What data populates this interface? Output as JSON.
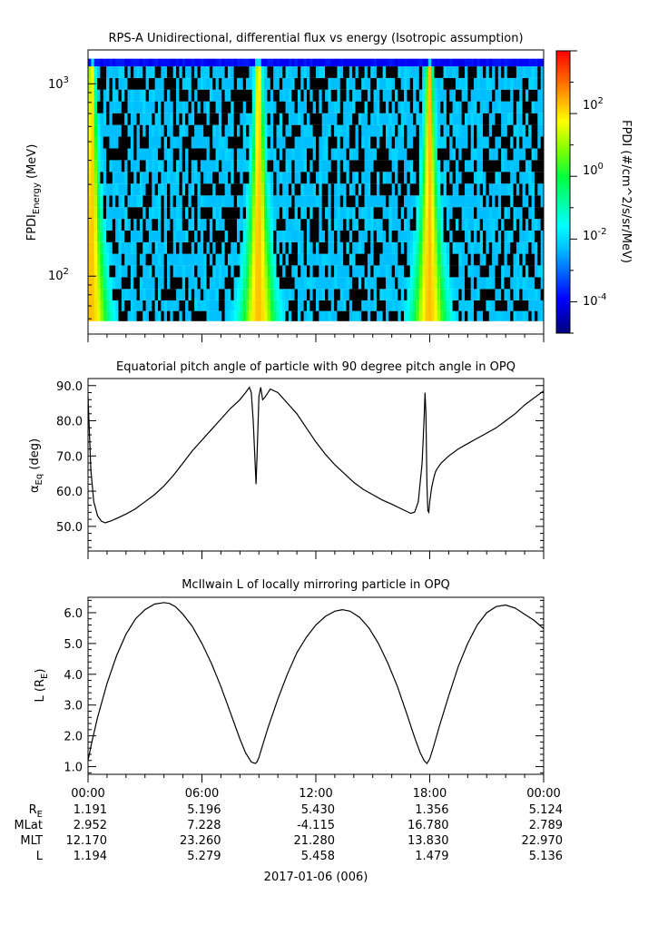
{
  "panels": {
    "spectrogram": {
      "title": "RPS-A Unidirectional, differential flux vs energy (Isotropic assumption)",
      "ylabel_main": "FPDI",
      "ylabel_sub": "Energy",
      "ylabel_unit": " (MeV)",
      "ytick_base": "10",
      "yticks": [
        {
          "exp": "3"
        },
        {
          "exp": "2"
        }
      ],
      "colorbar_label": "FPDI (#/cm^2/s/sr/MeV)",
      "colorbar_ticks": [
        {
          "exp": "2"
        },
        {
          "exp": "0"
        },
        {
          "exp": "-2"
        },
        {
          "exp": "-4"
        }
      ]
    },
    "pitch": {
      "title": "Equatorial pitch angle of particle with 90 degree pitch angle in OPQ",
      "ylabel_main": "α",
      "ylabel_sub": "Eq",
      "ylabel_unit": " (deg)"
    },
    "lshell": {
      "title": "McIlwain L of locally mirroring particle in OPQ",
      "ylabel_main": "L (R",
      "ylabel_sub": "E",
      "ylabel_unit": ")"
    }
  },
  "chart_data": [
    {
      "type": "heatmap",
      "title": "RPS-A Unidirectional, differential flux vs energy (Isotropic assumption)",
      "ylabel": "FPDI_Energy (MeV)",
      "yscale": "log",
      "ylim": [
        50,
        1500
      ],
      "xlim_hours": [
        0,
        24
      ],
      "colorbar_label": "FPDI (#/cm^2/s/sr/MeV)",
      "colorbar_scale": "log",
      "colorbar_range": [
        1e-05,
        10000.0
      ],
      "colormap": "rainbow (blue-cyan-green-yellow-red)",
      "energy_channels_mev": [
        62,
        70,
        80,
        92,
        106,
        122,
        140,
        161,
        185,
        213,
        245,
        282,
        325,
        374,
        430,
        495,
        570,
        655,
        755,
        870,
        1000,
        1150,
        1320
      ],
      "description_bands": [
        "flux peaks near perigee at ~00:00, ~08:55 and ~17:55 UT"
      ]
    },
    {
      "type": "line",
      "title": "Equatorial pitch angle of particle with 90 degree pitch angle in OPQ",
      "ylabel": "αEq (deg)",
      "ylim": [
        43,
        92
      ],
      "yticks": [
        50,
        60,
        70,
        80,
        90
      ],
      "x_hours": [
        0.0,
        0.05,
        0.15,
        0.3,
        0.5,
        0.7,
        0.9,
        1.2,
        1.6,
        2.0,
        2.5,
        3.0,
        3.5,
        4.0,
        4.5,
        5.0,
        5.5,
        6.0,
        6.5,
        7.0,
        7.5,
        8.0,
        8.3,
        8.5,
        8.6,
        8.7,
        8.8,
        8.85,
        8.9,
        9.0,
        9.1,
        9.2,
        9.3,
        9.6,
        10.0,
        10.5,
        11.0,
        11.5,
        12.0,
        12.5,
        13.0,
        13.5,
        14.0,
        14.5,
        15.0,
        15.5,
        16.0,
        16.5,
        17.0,
        17.2,
        17.4,
        17.6,
        17.7,
        17.75,
        17.8,
        17.85,
        17.9,
        17.95,
        18.0,
        18.1,
        18.2,
        18.3,
        18.4,
        18.6,
        19.0,
        19.5,
        20.0,
        20.5,
        21.0,
        21.5,
        22.0,
        22.5,
        23.0,
        23.5,
        24.0
      ],
      "y_deg": [
        87,
        80,
        66,
        57,
        53,
        51.5,
        51,
        51.5,
        52.5,
        53.5,
        55,
        57,
        59,
        61.5,
        64.5,
        68,
        71.5,
        74.5,
        77.5,
        80.5,
        83.5,
        86,
        88,
        89.5,
        88,
        80,
        68,
        62,
        70,
        87,
        89.5,
        86,
        86.5,
        89,
        88,
        85,
        82,
        78,
        74,
        70.5,
        67.5,
        65,
        62.5,
        60.5,
        59,
        57.5,
        56.3,
        55,
        53.7,
        54,
        57,
        68,
        80,
        88,
        82,
        62,
        54.5,
        54,
        57,
        61,
        63.5,
        65.5,
        66.5,
        68,
        70,
        72,
        73.5,
        75,
        76.5,
        78,
        80,
        82,
        84.5,
        86.5,
        88.5
      ]
    },
    {
      "type": "line",
      "title": "McIlwain L of locally mirroring particle in OPQ",
      "ylabel": "L (RE)",
      "ylim": [
        0.75,
        6.5
      ],
      "yticks": [
        1,
        2,
        3,
        4,
        5,
        6
      ],
      "x_hours": [
        0.0,
        0.2,
        0.5,
        1.0,
        1.5,
        2.0,
        2.5,
        3.0,
        3.5,
        4.0,
        4.3,
        4.6,
        5.0,
        5.5,
        6.0,
        6.5,
        7.0,
        7.5,
        8.0,
        8.3,
        8.6,
        8.8,
        8.9,
        9.0,
        9.2,
        9.5,
        10.0,
        10.5,
        11.0,
        11.5,
        12.0,
        12.5,
        13.0,
        13.4,
        13.8,
        14.3,
        14.8,
        15.3,
        15.8,
        16.3,
        16.8,
        17.2,
        17.5,
        17.7,
        17.85,
        18.0,
        18.2,
        18.5,
        19.0,
        19.5,
        20.0,
        20.5,
        21.0,
        21.5,
        22.0,
        22.5,
        23.0,
        23.5,
        24.0
      ],
      "y_re": [
        1.2,
        1.8,
        2.6,
        3.7,
        4.6,
        5.3,
        5.8,
        6.1,
        6.28,
        6.33,
        6.3,
        6.2,
        5.95,
        5.55,
        5.0,
        4.35,
        3.6,
        2.75,
        1.9,
        1.45,
        1.15,
        1.1,
        1.15,
        1.3,
        1.7,
        2.3,
        3.2,
        4.0,
        4.7,
        5.2,
        5.6,
        5.88,
        6.05,
        6.1,
        6.05,
        5.85,
        5.5,
        5.0,
        4.35,
        3.6,
        2.7,
        1.95,
        1.45,
        1.2,
        1.1,
        1.25,
        1.65,
        2.3,
        3.3,
        4.25,
        5.0,
        5.6,
        6.0,
        6.2,
        6.25,
        6.15,
        5.95,
        5.75,
        5.48
      ]
    }
  ],
  "xaxis": {
    "tick_labels": [
      "00:00",
      "06:00",
      "12:00",
      "18:00",
      "00:00"
    ],
    "row_labels": [
      {
        "main": "R",
        "sub": "E"
      },
      {
        "main": "MLat",
        "sub": ""
      },
      {
        "main": "MLT",
        "sub": ""
      },
      {
        "main": "L",
        "sub": ""
      }
    ],
    "rows": [
      [
        "1.191",
        "5.196",
        "5.430",
        "1.356",
        "5.124"
      ],
      [
        "2.952",
        "7.228",
        "-4.115",
        "16.780",
        "2.789"
      ],
      [
        "12.170",
        "23.260",
        "21.280",
        "13.830",
        "22.970"
      ],
      [
        "1.194",
        "5.279",
        "5.458",
        "1.479",
        "5.136"
      ]
    ],
    "date_label": "2017-01-06 (006)"
  }
}
